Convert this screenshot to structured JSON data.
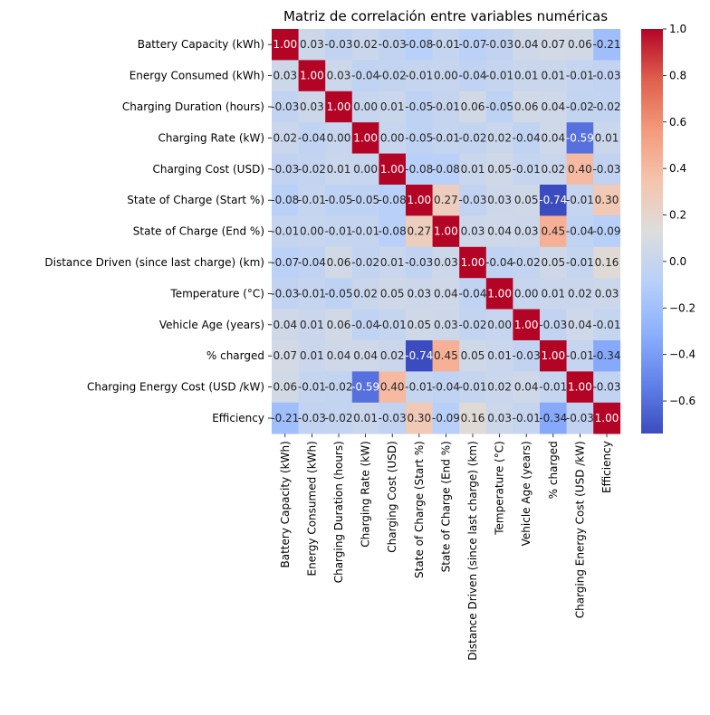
{
  "chart_data": {
    "type": "heatmap",
    "title": "Matriz de correlación entre variables numéricas",
    "xlabel": "",
    "ylabel": "",
    "variables": [
      "Battery Capacity (kWh)",
      "Energy Consumed (kWh)",
      "Charging Duration (hours)",
      "Charging Rate (kW)",
      "Charging Cost (USD)",
      "State of Charge (Start %)",
      "State of Charge (End %)",
      "Distance Driven (since last charge) (km)",
      "Temperature (°C)",
      "Vehicle Age (years)",
      "% charged",
      "Charging Energy Cost (USD /kW)",
      "Efficiency"
    ],
    "matrix": [
      [
        1.0,
        0.03,
        -0.03,
        0.02,
        -0.03,
        -0.08,
        -0.01,
        -0.07,
        -0.03,
        0.04,
        0.07,
        0.06,
        -0.21
      ],
      [
        0.03,
        1.0,
        0.03,
        -0.04,
        -0.02,
        -0.01,
        0.0,
        -0.04,
        -0.01,
        0.01,
        0.01,
        -0.01,
        -0.03
      ],
      [
        -0.03,
        0.03,
        1.0,
        -0.0,
        0.01,
        -0.05,
        -0.01,
        0.06,
        -0.05,
        0.06,
        0.04,
        -0.02,
        -0.02
      ],
      [
        0.02,
        -0.04,
        -0.0,
        1.0,
        -0.0,
        -0.05,
        -0.01,
        -0.02,
        0.02,
        -0.04,
        0.04,
        -0.59,
        0.01
      ],
      [
        -0.03,
        -0.02,
        0.01,
        -0.0,
        1.0,
        -0.08,
        -0.08,
        0.01,
        0.05,
        -0.01,
        0.02,
        0.4,
        -0.03
      ],
      [
        -0.08,
        -0.01,
        -0.05,
        -0.05,
        -0.08,
        1.0,
        0.27,
        -0.03,
        0.03,
        0.05,
        -0.74,
        -0.01,
        0.3
      ],
      [
        -0.01,
        0.0,
        -0.01,
        -0.01,
        -0.08,
        0.27,
        1.0,
        0.03,
        0.04,
        0.03,
        0.45,
        -0.04,
        -0.09
      ],
      [
        -0.07,
        -0.04,
        0.06,
        -0.02,
        0.01,
        -0.03,
        0.03,
        1.0,
        -0.04,
        -0.02,
        0.05,
        -0.01,
        0.16
      ],
      [
        -0.03,
        -0.01,
        -0.05,
        0.02,
        0.05,
        0.03,
        0.04,
        -0.04,
        1.0,
        -0.0,
        0.01,
        0.02,
        0.03
      ],
      [
        0.04,
        0.01,
        0.06,
        -0.04,
        -0.01,
        0.05,
        0.03,
        -0.02,
        -0.0,
        1.0,
        -0.03,
        0.04,
        -0.01
      ],
      [
        0.07,
        0.01,
        0.04,
        0.04,
        0.02,
        -0.74,
        0.45,
        0.05,
        0.01,
        -0.03,
        1.0,
        -0.01,
        -0.34
      ],
      [
        0.06,
        -0.01,
        -0.02,
        -0.59,
        0.4,
        -0.01,
        -0.04,
        -0.01,
        0.02,
        0.04,
        -0.01,
        1.0,
        -0.03
      ],
      [
        -0.21,
        -0.03,
        -0.02,
        0.01,
        -0.03,
        0.3,
        -0.09,
        0.16,
        0.03,
        -0.01,
        -0.34,
        -0.03,
        1.0
      ]
    ],
    "value_range": [
      -0.74,
      1.0
    ],
    "colormap": "coolwarm",
    "colorbar_ticks": [
      1.0,
      0.8,
      0.6,
      0.4,
      0.2,
      0.0,
      -0.2,
      -0.4,
      -0.6
    ],
    "annotation_format": "2 decimals",
    "grid": false,
    "legend": "colorbar-right"
  }
}
